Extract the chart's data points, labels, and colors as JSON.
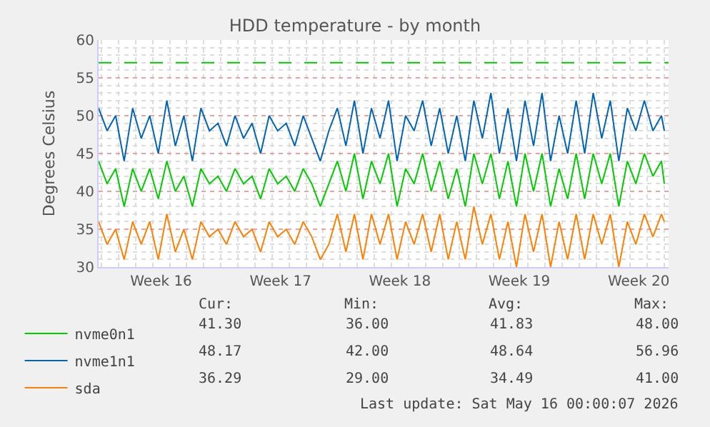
{
  "chart_data": {
    "type": "line",
    "title": "HDD temperature - by month",
    "ylabel": "Degrees Celsius",
    "x": [
      "2026-04-12T20:00",
      "2026-04-13T08:00",
      "2026-04-13T20:00",
      "2026-04-14T08:00",
      "2026-04-14T20:00",
      "2026-04-15T08:00",
      "2026-04-15T20:00",
      "2026-04-16T08:00",
      "2026-04-16T20:00",
      "2026-04-17T08:00",
      "2026-04-17T20:00",
      "2026-04-18T08:00",
      "2026-04-18T20:00",
      "2026-04-19T08:00",
      "2026-04-19T20:00",
      "2026-04-20T08:00",
      "2026-04-20T20:00",
      "2026-04-21T08:00",
      "2026-04-21T20:00",
      "2026-04-22T08:00",
      "2026-04-22T20:00",
      "2026-04-23T08:00",
      "2026-04-23T20:00",
      "2026-04-24T08:00",
      "2026-04-24T20:00",
      "2026-04-25T08:00",
      "2026-04-25T20:00",
      "2026-04-26T08:00",
      "2026-04-26T20:00",
      "2026-04-27T08:00",
      "2026-04-27T20:00",
      "2026-04-28T08:00",
      "2026-04-28T20:00",
      "2026-04-29T08:00",
      "2026-04-29T20:00",
      "2026-04-30T08:00",
      "2026-04-30T20:00",
      "2026-05-01T08:00",
      "2026-05-01T20:00",
      "2026-05-02T08:00",
      "2026-05-02T20:00",
      "2026-05-03T08:00",
      "2026-05-03T20:00",
      "2026-05-04T08:00",
      "2026-05-04T20:00",
      "2026-05-05T08:00",
      "2026-05-05T20:00",
      "2026-05-06T08:00",
      "2026-05-06T20:00",
      "2026-05-07T08:00",
      "2026-05-07T20:00",
      "2026-05-08T08:00",
      "2026-05-08T20:00",
      "2026-05-09T08:00",
      "2026-05-09T20:00",
      "2026-05-10T08:00",
      "2026-05-10T20:00",
      "2026-05-11T08:00",
      "2026-05-11T20:00",
      "2026-05-12T08:00",
      "2026-05-12T20:00",
      "2026-05-13T08:00",
      "2026-05-13T20:00",
      "2026-05-14T08:00",
      "2026-05-14T20:00",
      "2026-05-15T08:00",
      "2026-05-15T20:00",
      "2026-05-16T00:00"
    ],
    "series": [
      {
        "name": "nvme0n1",
        "color": "#00cc00",
        "values": [
          44,
          41,
          43,
          38,
          43,
          40,
          43,
          39,
          44,
          40,
          42,
          38,
          43,
          41,
          42,
          40,
          43,
          41,
          42,
          39,
          43,
          41,
          42,
          40,
          43,
          41,
          38,
          41,
          44,
          40,
          45,
          39,
          44,
          41,
          45,
          38,
          43,
          41,
          45,
          40,
          44,
          39,
          43,
          38,
          45,
          41,
          45,
          39,
          44,
          38,
          45,
          40,
          45,
          38,
          43,
          39,
          45,
          39,
          45,
          41,
          45,
          38,
          44,
          41,
          45,
          42,
          44,
          41
        ]
      },
      {
        "name": "nvme1n1",
        "color": "#0066b3",
        "values": [
          51,
          48,
          50,
          44,
          51,
          47,
          50,
          45,
          52,
          46,
          50,
          44,
          51,
          48,
          49,
          46,
          50,
          47,
          49,
          45,
          50,
          48,
          49,
          46,
          50,
          47,
          44,
          48,
          51,
          46,
          52,
          45,
          51,
          47,
          52,
          44,
          50,
          48,
          52,
          46,
          51,
          45,
          50,
          44,
          52,
          47,
          53,
          45,
          51,
          44,
          52,
          46,
          53,
          44,
          50,
          45,
          52,
          45,
          53,
          47,
          52,
          44,
          51,
          48,
          52,
          48,
          50,
          48
        ]
      },
      {
        "name": "sda",
        "color": "#ff8000",
        "values": [
          36,
          33,
          35,
          31,
          36,
          33,
          36,
          31,
          37,
          32,
          35,
          31,
          36,
          34,
          35,
          33,
          36,
          34,
          35,
          32,
          36,
          34,
          35,
          33,
          36,
          34,
          31,
          33,
          37,
          32,
          37,
          31,
          37,
          33,
          37,
          31,
          36,
          33,
          37,
          32,
          37,
          31,
          36,
          31,
          38,
          33,
          37,
          31,
          36,
          30,
          37,
          32,
          37,
          30,
          36,
          31,
          37,
          31,
          37,
          33,
          37,
          30,
          36,
          33,
          37,
          34,
          37,
          36
        ]
      }
    ],
    "xlim": [
      "2026-04-12T20:00",
      "2026-05-16T06:00"
    ],
    "xticks": [
      {
        "value": "2026-04-16T12:00",
        "label": "Week 16"
      },
      {
        "value": "2026-04-23T12:00",
        "label": "Week 17"
      },
      {
        "value": "2026-04-30T12:00",
        "label": "Week 18"
      },
      {
        "value": "2026-05-07T12:00",
        "label": "Week 19"
      },
      {
        "value": "2026-05-14T12:00",
        "label": "Week 20"
      }
    ],
    "ylim": [
      30,
      60
    ],
    "yticks": [
      30,
      35,
      40,
      45,
      50,
      55,
      60
    ],
    "grid": "y",
    "legend": "bottom left",
    "marker": "none",
    "line_style": "solid",
    "ref_lines": [
      {
        "axis": "y",
        "value": 57,
        "color": "#00cc00",
        "line_style": "dashed"
      }
    ],
    "annotations": [
      "Cur:",
      "Min:",
      "Avg:",
      "Max:",
      "41.30",
      "36.00",
      "41.83",
      "48.00",
      "48.17",
      "42.00",
      "48.64",
      "56.96",
      "36.29",
      "29.00",
      "34.49",
      "41.00",
      "Last update: Sat May 16 00:00:07 2026"
    ]
  }
}
